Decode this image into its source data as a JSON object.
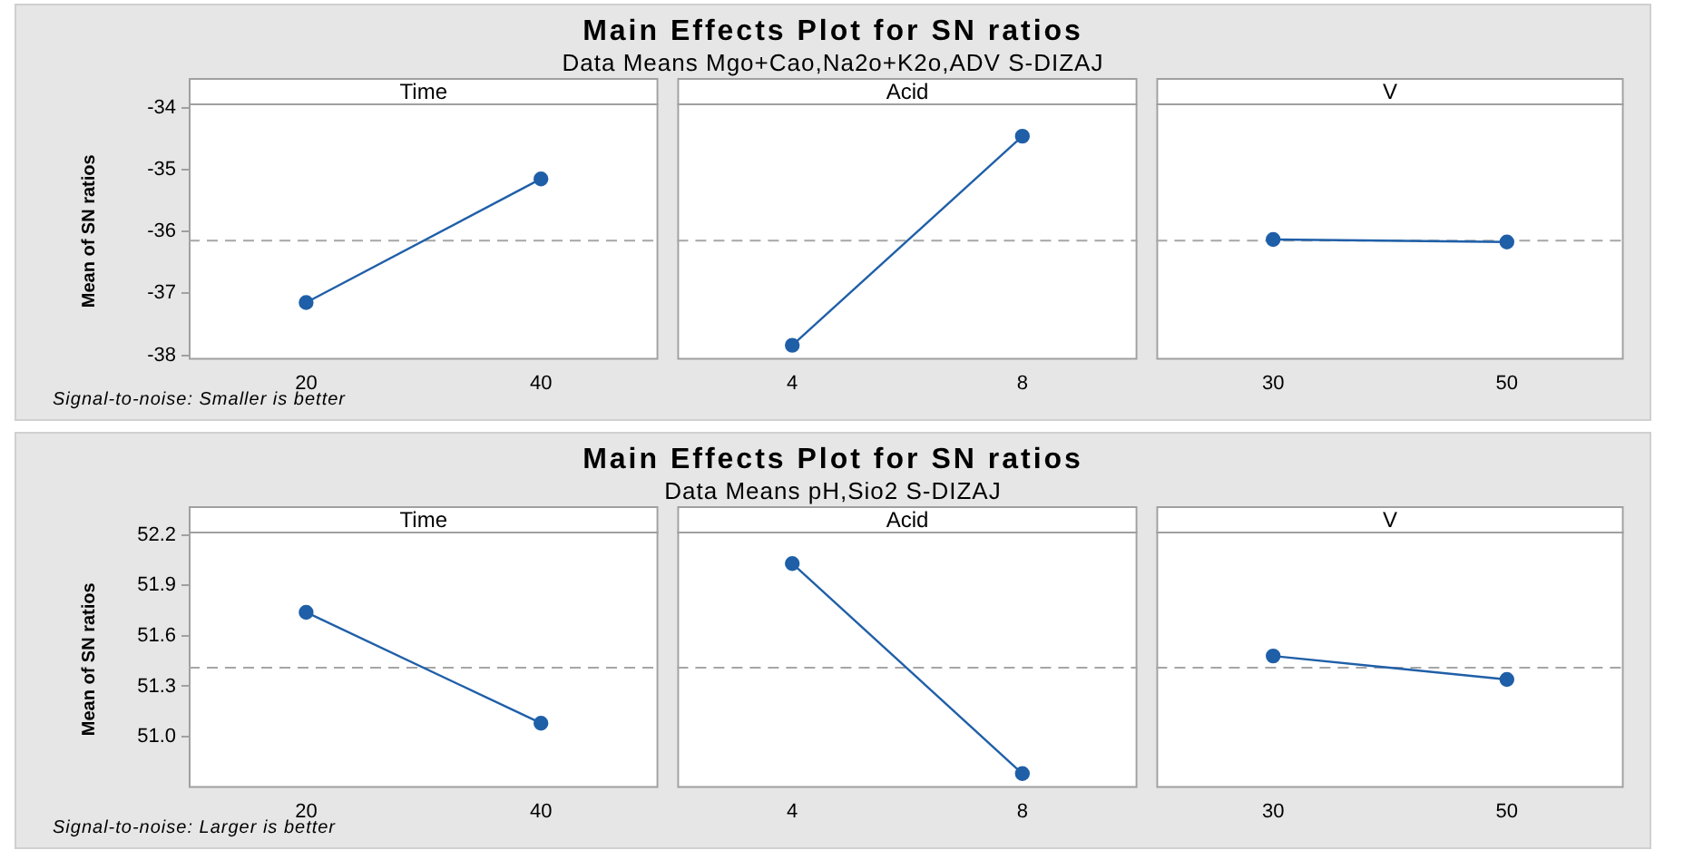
{
  "chart_data": [
    {
      "type": "line",
      "title": "Time",
      "ylabel": "Mean of SN ratios",
      "categories": [
        "20",
        "40"
      ],
      "series": [
        {
          "color": "#1f5fa8",
          "values": [
            -37.15,
            -35.15
          ]
        }
      ],
      "ylim": [
        -38.06,
        -33.93
      ],
      "yticks": [
        -38,
        -37,
        -36,
        -35,
        -34
      ],
      "marker": "circle",
      "ref_lines": [
        {
          "axis": "y",
          "value": -36.15,
          "color": "#a6a6a6",
          "line_style": "dashed"
        }
      ],
      "annotations": [
        "Main Effects Plot for SN ratios",
        "Data Means Mgo+Cao,Na2o+K2o,ADV S-DIZAJ",
        "Signal-to-noise: Smaller is better"
      ]
    },
    {
      "type": "line",
      "title": "Acid",
      "categories": [
        "4",
        "8"
      ],
      "series": [
        {
          "color": "#1f5fa8",
          "values": [
            -37.84,
            -34.46
          ]
        }
      ],
      "ylim": [
        -38.06,
        -33.93
      ],
      "tick_labels": "x",
      "marker": "circle",
      "ref_lines": [
        {
          "axis": "y",
          "value": -36.15,
          "color": "#a6a6a6",
          "line_style": "dashed"
        }
      ]
    },
    {
      "type": "line",
      "title": "V",
      "categories": [
        "30",
        "50"
      ],
      "series": [
        {
          "color": "#1f5fa8",
          "values": [
            -36.13,
            -36.17
          ]
        }
      ],
      "ylim": [
        -38.06,
        -33.93
      ],
      "tick_labels": "x",
      "marker": "circle",
      "ref_lines": [
        {
          "axis": "y",
          "value": -36.15,
          "color": "#a6a6a6",
          "line_style": "dashed"
        }
      ]
    },
    {
      "type": "line",
      "title": "Time",
      "ylabel": "Mean of SN ratios",
      "categories": [
        "20",
        "40"
      ],
      "series": [
        {
          "color": "#1f5fa8",
          "values": [
            51.74,
            51.08
          ]
        }
      ],
      "ylim": [
        50.7,
        52.22
      ],
      "yticks": [
        {
          "value": 51,
          "label": "51.0"
        },
        51.3,
        51.6,
        51.9,
        52.2
      ],
      "marker": "circle",
      "ref_lines": [
        {
          "axis": "y",
          "value": 51.41,
          "color": "#a6a6a6",
          "line_style": "dashed"
        }
      ],
      "annotations": [
        "Main Effects Plot for SN ratios",
        "Data Means pH,Sio2  S-DIZAJ",
        "Signal-to-noise: Larger is better"
      ]
    },
    {
      "type": "line",
      "title": "Acid",
      "categories": [
        "4",
        "8"
      ],
      "series": [
        {
          "color": "#1f5fa8",
          "values": [
            52.03,
            50.78
          ]
        }
      ],
      "ylim": [
        50.7,
        52.22
      ],
      "tick_labels": "x",
      "marker": "circle",
      "ref_lines": [
        {
          "axis": "y",
          "value": 51.41,
          "color": "#a6a6a6",
          "line_style": "dashed"
        }
      ]
    },
    {
      "type": "line",
      "title": "V",
      "categories": [
        "30",
        "50"
      ],
      "series": [
        {
          "color": "#1f5fa8",
          "values": [
            51.48,
            51.34
          ]
        }
      ],
      "ylim": [
        50.7,
        52.22
      ],
      "tick_labels": "x",
      "marker": "circle",
      "ref_lines": [
        {
          "axis": "y",
          "value": 51.41,
          "color": "#a6a6a6",
          "line_style": "dashed"
        }
      ]
    }
  ]
}
